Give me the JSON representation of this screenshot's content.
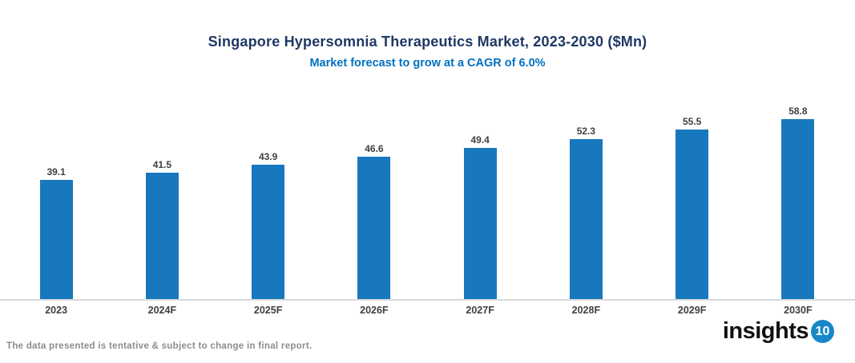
{
  "title": "Singapore Hypersomnia Therapeutics Market, 2023-2030 ($Mn)",
  "subtitle": "Market forecast to grow at a CAGR of 6.0%",
  "footer": {
    "disclaimer": "The data presented is tentative & subject to change in final report."
  },
  "logo": {
    "text": "insights",
    "badge": "10"
  },
  "colors": {
    "bar": "#1878BE",
    "title_text": "#1F3864",
    "subtitle_text": "#0070C0",
    "value_label": "#404040",
    "tick_label": "#404040",
    "axis_line": "#D9D9D9",
    "footer_text": "#8C8C8C",
    "logo_text": "#111111",
    "logo_badge": "#1787C8"
  },
  "chart_data": {
    "type": "bar",
    "categories": [
      "2023",
      "2024F",
      "2025F",
      "2026F",
      "2027F",
      "2028F",
      "2029F",
      "2030F"
    ],
    "values": [
      39.1,
      41.5,
      43.9,
      46.6,
      49.4,
      52.3,
      55.5,
      58.8
    ],
    "title": "Singapore Hypersomnia Therapeutics Market, 2023-2030 ($Mn)",
    "subtitle": "Market forecast to grow at a CAGR of 6.0%",
    "xlabel": "",
    "ylabel": "",
    "ylim": [
      0,
      63
    ],
    "grid": false,
    "legend": false,
    "value_labels": true,
    "bar_color": "#1878BE"
  }
}
